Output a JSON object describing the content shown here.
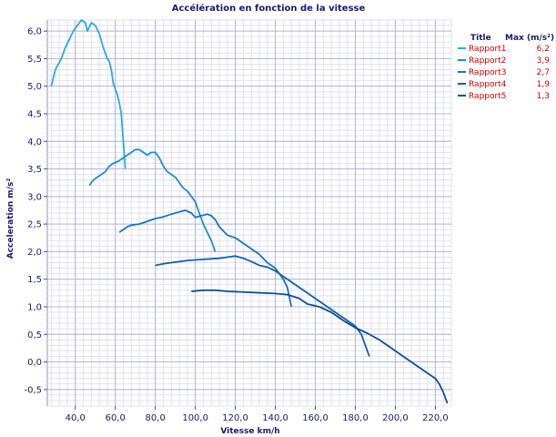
{
  "chart_data": {
    "type": "line",
    "title": "Accélération en fonction de la vitesse",
    "xlabel": "Vitesse km/h",
    "ylabel": "Acceleration m/s²",
    "xlim": [
      26,
      228
    ],
    "ylim": [
      -0.8,
      6.2
    ],
    "x_ticks": [
      40,
      60,
      80,
      100,
      120,
      140,
      160,
      180,
      200,
      220
    ],
    "x_tick_labels": [
      "40,0",
      "60,0",
      "80,0",
      "100,0",
      "120,0",
      "140,0",
      "160,0",
      "180,0",
      "200,0",
      "220,0"
    ],
    "y_ticks": [
      -0.5,
      0,
      0.5,
      1,
      1.5,
      2,
      2.5,
      3,
      3.5,
      4,
      4.5,
      5,
      5.5,
      6
    ],
    "y_tick_labels": [
      "-0,5",
      "0,0",
      "0,5",
      "1,0",
      "1,5",
      "2,0",
      "2,5",
      "3,0",
      "3,5",
      "4,0",
      "4,5",
      "5,0",
      "5,5",
      "6,0"
    ],
    "grid": true,
    "legend": {
      "position": "top-right",
      "col_title": "Title",
      "col_max": "Max (m/s²)"
    },
    "series": [
      {
        "name": "Rapport1",
        "max": "6,2",
        "color": "#29abe2",
        "points": [
          [
            28,
            5.0
          ],
          [
            30,
            5.3
          ],
          [
            33,
            5.5
          ],
          [
            35,
            5.7
          ],
          [
            37,
            5.85
          ],
          [
            39,
            6.0
          ],
          [
            41,
            6.1
          ],
          [
            43,
            6.2
          ],
          [
            45,
            6.15
          ],
          [
            46,
            6.0
          ],
          [
            48,
            6.15
          ],
          [
            50,
            6.1
          ],
          [
            52,
            5.95
          ],
          [
            54,
            5.7
          ],
          [
            55,
            5.6
          ],
          [
            56,
            5.5
          ],
          [
            57,
            5.45
          ],
          [
            58,
            5.3
          ],
          [
            59,
            5.05
          ],
          [
            60,
            4.95
          ],
          [
            61,
            4.85
          ],
          [
            62,
            4.7
          ],
          [
            63,
            4.5
          ],
          [
            64,
            4.0
          ],
          [
            65,
            3.5
          ]
        ]
      },
      {
        "name": "Rapport2",
        "max": "3,9",
        "color": "#1e8fcc",
        "points": [
          [
            47,
            3.2
          ],
          [
            49,
            3.3
          ],
          [
            51,
            3.35
          ],
          [
            53,
            3.4
          ],
          [
            55,
            3.45
          ],
          [
            57,
            3.55
          ],
          [
            59,
            3.6
          ],
          [
            62,
            3.65
          ],
          [
            64,
            3.7
          ],
          [
            66,
            3.75
          ],
          [
            68,
            3.8
          ],
          [
            70,
            3.85
          ],
          [
            72,
            3.85
          ],
          [
            74,
            3.8
          ],
          [
            76,
            3.75
          ],
          [
            78,
            3.8
          ],
          [
            80,
            3.8
          ],
          [
            82,
            3.7
          ],
          [
            84,
            3.55
          ],
          [
            86,
            3.45
          ],
          [
            88,
            3.4
          ],
          [
            90,
            3.35
          ],
          [
            92,
            3.25
          ],
          [
            94,
            3.15
          ],
          [
            96,
            3.1
          ],
          [
            98,
            3.0
          ],
          [
            100,
            2.9
          ],
          [
            102,
            2.7
          ],
          [
            104,
            2.5
          ],
          [
            106,
            2.35
          ],
          [
            108,
            2.2
          ],
          [
            110,
            2.0
          ]
        ]
      },
      {
        "name": "Rapport3",
        "max": "2,7",
        "color": "#1a75b8",
        "points": [
          [
            62,
            2.35
          ],
          [
            64,
            2.4
          ],
          [
            66,
            2.45
          ],
          [
            68,
            2.48
          ],
          [
            72,
            2.5
          ],
          [
            76,
            2.55
          ],
          [
            80,
            2.6
          ],
          [
            84,
            2.63
          ],
          [
            88,
            2.68
          ],
          [
            92,
            2.72
          ],
          [
            95,
            2.75
          ],
          [
            98,
            2.7
          ],
          [
            100,
            2.62
          ],
          [
            103,
            2.65
          ],
          [
            106,
            2.68
          ],
          [
            108,
            2.65
          ],
          [
            110,
            2.58
          ],
          [
            112,
            2.45
          ],
          [
            116,
            2.3
          ],
          [
            120,
            2.25
          ],
          [
            124,
            2.15
          ],
          [
            128,
            2.05
          ],
          [
            132,
            1.95
          ],
          [
            136,
            1.8
          ],
          [
            140,
            1.7
          ],
          [
            144,
            1.5
          ],
          [
            146,
            1.35
          ],
          [
            148,
            1.0
          ]
        ]
      },
      {
        "name": "Rapport4",
        "max": "1,9",
        "color": "#1560a3",
        "points": [
          [
            80,
            1.75
          ],
          [
            84,
            1.78
          ],
          [
            88,
            1.8
          ],
          [
            92,
            1.82
          ],
          [
            96,
            1.84
          ],
          [
            100,
            1.85
          ],
          [
            104,
            1.86
          ],
          [
            108,
            1.87
          ],
          [
            112,
            1.88
          ],
          [
            116,
            1.9
          ],
          [
            120,
            1.92
          ],
          [
            124,
            1.88
          ],
          [
            128,
            1.82
          ],
          [
            132,
            1.75
          ],
          [
            136,
            1.72
          ],
          [
            140,
            1.65
          ],
          [
            144,
            1.55
          ],
          [
            148,
            1.45
          ],
          [
            152,
            1.35
          ],
          [
            156,
            1.25
          ],
          [
            160,
            1.15
          ],
          [
            164,
            1.05
          ],
          [
            168,
            0.95
          ],
          [
            172,
            0.85
          ],
          [
            176,
            0.75
          ],
          [
            180,
            0.65
          ],
          [
            183,
            0.5
          ],
          [
            185,
            0.3
          ],
          [
            187,
            0.1
          ]
        ]
      },
      {
        "name": "Rapport5",
        "max": "1,3",
        "color": "#12508e",
        "points": [
          [
            98,
            1.28
          ],
          [
            104,
            1.3
          ],
          [
            110,
            1.3
          ],
          [
            116,
            1.28
          ],
          [
            122,
            1.27
          ],
          [
            128,
            1.26
          ],
          [
            134,
            1.25
          ],
          [
            140,
            1.24
          ],
          [
            146,
            1.22
          ],
          [
            152,
            1.15
          ],
          [
            156,
            1.05
          ],
          [
            162,
            1.0
          ],
          [
            168,
            0.9
          ],
          [
            174,
            0.75
          ],
          [
            180,
            0.62
          ],
          [
            186,
            0.52
          ],
          [
            192,
            0.4
          ],
          [
            198,
            0.25
          ],
          [
            204,
            0.1
          ],
          [
            210,
            -0.05
          ],
          [
            216,
            -0.2
          ],
          [
            220,
            -0.3
          ],
          [
            222,
            -0.4
          ],
          [
            224,
            -0.55
          ],
          [
            226,
            -0.75
          ]
        ]
      }
    ]
  }
}
